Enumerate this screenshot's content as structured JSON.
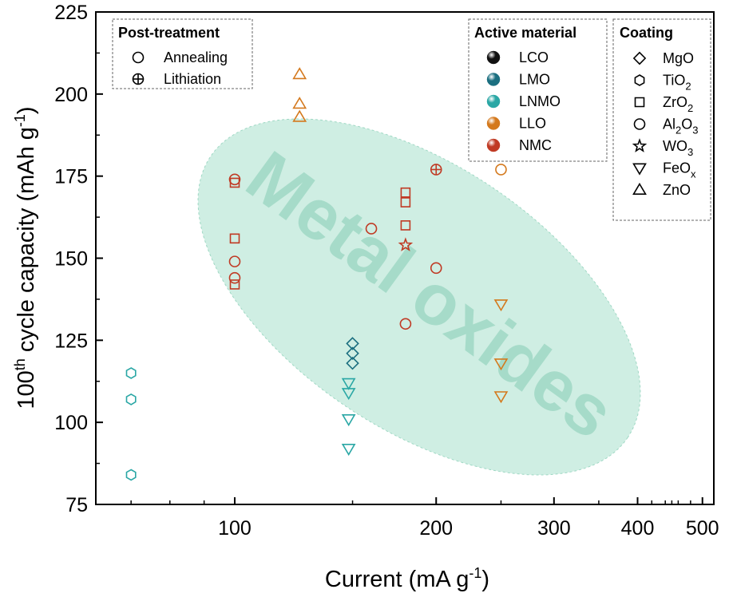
{
  "chart_data": {
    "type": "scatter",
    "xlabel": "Current (mA g",
    "xlabel_sup": "-1",
    "xlabel_end": ")",
    "ylabel_prefix": "100",
    "ylabel_sup": "th",
    "ylabel_mid": " cycle capacity (mAh g",
    "ylabel_sup2": "-1",
    "ylabel_end": ")",
    "x_scale": "log",
    "xlim": [
      62,
      520
    ],
    "ylim": [
      75,
      225
    ],
    "x_ticks": [
      100,
      200,
      300,
      400,
      500
    ],
    "x_tick_labels": [
      "100",
      "200",
      "300",
      "400",
      "500"
    ],
    "y_ticks": [
      75,
      100,
      125,
      150,
      175,
      200,
      225
    ],
    "y_tick_labels": [
      "75",
      "100",
      "125",
      "150",
      "175",
      "200",
      "225"
    ],
    "watermark": "Metal oxides",
    "colors": {
      "LCO": "#111111",
      "LMO": "#1b6f80",
      "LNMO": "#2aa7a5",
      "LLO": "#d4791d",
      "NMC": "#c03a24",
      "region": "#cfeee3"
    },
    "legend_post": {
      "title": "Post-treatment",
      "items": [
        {
          "marker": "circle",
          "label": "Annealing"
        },
        {
          "marker": "circle-plus",
          "label": "Lithiation"
        }
      ]
    },
    "legend_active": {
      "title": "Active material",
      "items": [
        {
          "material": "LCO",
          "label": "LCO"
        },
        {
          "material": "LMO",
          "label": "LMO"
        },
        {
          "material": "LNMO",
          "label": "LNMO"
        },
        {
          "material": "LLO",
          "label": "LLO"
        },
        {
          "material": "NMC",
          "label": "NMC"
        }
      ]
    },
    "legend_coating": {
      "title": "Coating",
      "items": [
        {
          "marker": "diamond",
          "label": "MgO",
          "base": "MgO",
          "sub": ""
        },
        {
          "marker": "hexagon",
          "label": "TiO2",
          "base": "TiO",
          "sub": "2"
        },
        {
          "marker": "square",
          "label": "ZrO2",
          "base": "ZrO",
          "sub": "2"
        },
        {
          "marker": "circle",
          "label": "Al2O3",
          "base": "Al",
          "sub": "2",
          "base2": "O",
          "sub2": "3"
        },
        {
          "marker": "star",
          "label": "WO3",
          "base": "WO",
          "sub": "3"
        },
        {
          "marker": "triangle-down",
          "label": "FeOx",
          "base": "FeO",
          "sub": "x"
        },
        {
          "marker": "triangle-up",
          "label": "ZnO",
          "base": "ZnO",
          "sub": ""
        }
      ]
    },
    "points": [
      {
        "x": 70,
        "y": 115,
        "material": "LNMO",
        "marker": "hexagon"
      },
      {
        "x": 70,
        "y": 107,
        "material": "LNMO",
        "marker": "hexagon"
      },
      {
        "x": 70,
        "y": 84,
        "material": "LNMO",
        "marker": "hexagon"
      },
      {
        "x": 100,
        "y": 174,
        "material": "NMC",
        "marker": "circle"
      },
      {
        "x": 100,
        "y": 173,
        "material": "NMC",
        "marker": "square"
      },
      {
        "x": 100,
        "y": 156,
        "material": "NMC",
        "marker": "square"
      },
      {
        "x": 100,
        "y": 149,
        "material": "NMC",
        "marker": "circle"
      },
      {
        "x": 100,
        "y": 144,
        "material": "NMC",
        "marker": "circle"
      },
      {
        "x": 100,
        "y": 142,
        "material": "NMC",
        "marker": "square"
      },
      {
        "x": 125,
        "y": 206,
        "material": "LLO",
        "marker": "triangle-up"
      },
      {
        "x": 125,
        "y": 197,
        "material": "LLO",
        "marker": "triangle-up"
      },
      {
        "x": 125,
        "y": 193,
        "material": "LLO",
        "marker": "triangle-up"
      },
      {
        "x": 150,
        "y": 124,
        "material": "LMO",
        "marker": "diamond"
      },
      {
        "x": 150,
        "y": 121,
        "material": "LMO",
        "marker": "diamond"
      },
      {
        "x": 150,
        "y": 118,
        "material": "LMO",
        "marker": "diamond"
      },
      {
        "x": 148,
        "y": 112,
        "material": "LNMO",
        "marker": "triangle-down"
      },
      {
        "x": 148,
        "y": 109,
        "material": "LNMO",
        "marker": "triangle-down"
      },
      {
        "x": 148,
        "y": 101,
        "material": "LNMO",
        "marker": "triangle-down"
      },
      {
        "x": 148,
        "y": 92,
        "material": "LNMO",
        "marker": "triangle-down"
      },
      {
        "x": 160,
        "y": 159,
        "material": "NMC",
        "marker": "circle"
      },
      {
        "x": 180,
        "y": 170,
        "material": "NMC",
        "marker": "square"
      },
      {
        "x": 180,
        "y": 167,
        "material": "NMC",
        "marker": "square"
      },
      {
        "x": 180,
        "y": 160,
        "material": "NMC",
        "marker": "square"
      },
      {
        "x": 180,
        "y": 154,
        "material": "NMC",
        "marker": "star"
      },
      {
        "x": 180,
        "y": 130,
        "material": "NMC",
        "marker": "circle"
      },
      {
        "x": 200,
        "y": 177,
        "material": "NMC",
        "marker": "circle-plus"
      },
      {
        "x": 200,
        "y": 147,
        "material": "NMC",
        "marker": "circle"
      },
      {
        "x": 250,
        "y": 177,
        "material": "LLO",
        "marker": "circle"
      },
      {
        "x": 250,
        "y": 136,
        "material": "LLO",
        "marker": "triangle-down"
      },
      {
        "x": 250,
        "y": 118,
        "material": "LLO",
        "marker": "triangle-down"
      },
      {
        "x": 250,
        "y": 108,
        "material": "LLO",
        "marker": "triangle-down"
      }
    ]
  }
}
